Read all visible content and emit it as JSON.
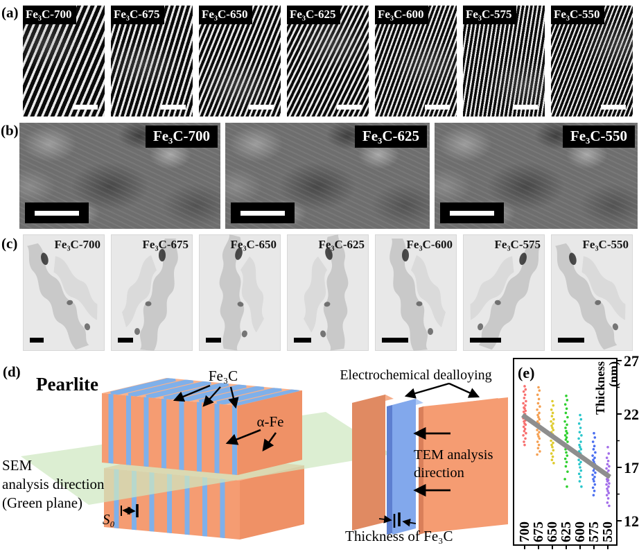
{
  "panels": {
    "a": {
      "label": "(a)",
      "samples": [
        "Fe₃C-700",
        "Fe₃C-675",
        "Fe₃C-650",
        "Fe₃C-625",
        "Fe₃C-600",
        "Fe₃C-575",
        "Fe₃C-550"
      ]
    },
    "b": {
      "label": "(b)",
      "samples": [
        "Fe₃C-700",
        "Fe₃C-625",
        "Fe₃C-550"
      ]
    },
    "c": {
      "label": "(c)",
      "samples": [
        "Fe₃C-700",
        "Fe₃C-675",
        "Fe₃C-650",
        "Fe₃C-625",
        "Fe₃C-600",
        "Fe₃C-575",
        "Fe₃C-550"
      ]
    },
    "d": {
      "label": "(d)",
      "title": "Pearlite",
      "fe3c_label": "Fe₃C",
      "alpha_fe_label": "α-Fe",
      "sem_line1": "SEM",
      "sem_line2": "analysis direction",
      "sem_line3": "(Green plane)",
      "spacing_label": "S₀",
      "dealloying_label": "Electrochemical dealloying",
      "tem_line1": "TEM analysis",
      "tem_line2": "direction",
      "thickness_label": "Thickness of Fe₃C",
      "colors": {
        "lamella_orange": "#f59c72",
        "lamella_blue": "#7fb0ea",
        "analysis_plane_green": "#cfe8c0"
      }
    },
    "e": {
      "label": "(e)"
    }
  },
  "chart_data": {
    "type": "scatter",
    "ylabel": "Thickness (nm)",
    "ylabel_parts": [
      "Thickness",
      "(nm)"
    ],
    "ylim": [
      12,
      27
    ],
    "yticks": [
      27,
      22,
      17,
      12
    ],
    "yticks_minor": [
      24.5,
      19.5,
      14.5
    ],
    "categories": [
      "700",
      "675",
      "650",
      "625",
      "600",
      "575",
      "550"
    ],
    "series": [
      {
        "name": "700",
        "color": "#f8706f",
        "values": [
          24.6,
          24.3,
          24.1,
          23.8,
          23.5,
          23.2,
          23.0,
          22.8,
          22.6,
          22.5,
          22.3,
          22.2,
          22.0,
          21.9,
          21.7,
          21.6,
          21.4,
          21.3,
          21.1,
          21.0,
          20.8,
          20.6,
          20.4,
          20.2,
          20.0,
          19.7,
          19.4,
          19.1
        ]
      },
      {
        "name": "675",
        "color": "#f5a052",
        "values": [
          24.5,
          24.2,
          23.8,
          23.4,
          23.0,
          22.7,
          22.4,
          22.1,
          21.9,
          21.7,
          21.5,
          21.3,
          21.1,
          20.9,
          20.7,
          20.5,
          20.3,
          20.1,
          19.9,
          19.7,
          19.4,
          19.1,
          18.8,
          18.5,
          18.2
        ]
      },
      {
        "name": "650",
        "color": "#decb2f",
        "values": [
          23.2,
          22.8,
          22.4,
          22.1,
          21.8,
          21.5,
          21.3,
          21.1,
          20.9,
          20.7,
          20.5,
          20.3,
          20.1,
          19.9,
          19.7,
          19.5,
          19.3,
          19.1,
          18.9,
          18.6,
          18.3,
          18.0,
          17.7,
          17.4
        ]
      },
      {
        "name": "625",
        "color": "#2fd02f",
        "values": [
          23.7,
          23.3,
          22.9,
          22.5,
          22.1,
          21.7,
          21.3,
          21.0,
          20.7,
          20.4,
          20.2,
          20.0,
          19.8,
          19.6,
          19.4,
          19.2,
          19.0,
          18.7,
          18.4,
          18.1,
          17.8,
          17.5,
          17.1,
          16.6,
          15.9,
          15.2
        ]
      },
      {
        "name": "600",
        "color": "#29c6cb",
        "values": [
          21.9,
          21.5,
          21.1,
          20.7,
          20.3,
          20.0,
          19.7,
          19.4,
          19.1,
          18.9,
          18.7,
          18.5,
          18.3,
          18.1,
          17.9,
          17.7,
          17.5,
          17.3,
          17.0,
          16.7,
          16.4,
          16.1,
          15.7,
          15.2
        ]
      },
      {
        "name": "575",
        "color": "#4a6ef0",
        "values": [
          20.2,
          19.8,
          19.4,
          19.0,
          18.7,
          18.4,
          18.1,
          17.9,
          17.7,
          17.5,
          17.3,
          17.1,
          16.9,
          16.7,
          16.5,
          16.3,
          16.1,
          15.9,
          15.7,
          15.4,
          15.1,
          14.8,
          14.4
        ]
      },
      {
        "name": "550",
        "color": "#a26de9",
        "values": [
          18.9,
          18.3,
          17.9,
          17.6,
          17.3,
          17.1,
          16.9,
          16.7,
          16.5,
          16.3,
          16.1,
          15.9,
          15.8,
          15.7,
          15.5,
          15.4,
          15.2,
          15.0,
          14.8,
          14.6,
          14.4,
          14.1,
          13.7,
          13.4
        ]
      }
    ],
    "trend_line": {
      "color": "#8e8e8e",
      "start_category": "700",
      "start_value": 21.9,
      "end_category": "550",
      "end_value": 16.1
    }
  }
}
